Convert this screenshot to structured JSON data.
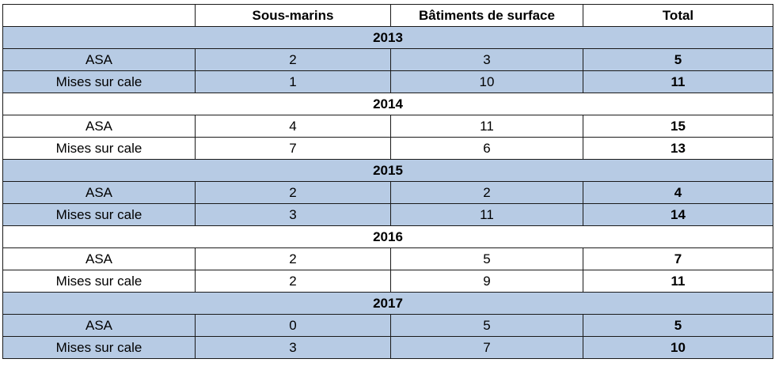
{
  "header": {
    "col0": "",
    "col1": "Sous-marins",
    "col2": "Bâtiments de surface",
    "col3": "Total"
  },
  "years": [
    {
      "year": "2013",
      "shaded": true,
      "rows": [
        {
          "label": "ASA",
          "submarines": "2",
          "surface": "3",
          "total": "5"
        },
        {
          "label": "Mises sur cale",
          "submarines": "1",
          "surface": "10",
          "total": "11"
        }
      ]
    },
    {
      "year": "2014",
      "shaded": false,
      "rows": [
        {
          "label": "ASA",
          "submarines": "4",
          "surface": "11",
          "total": "15"
        },
        {
          "label": "Mises sur cale",
          "submarines": "7",
          "surface": "6",
          "total": "13"
        }
      ]
    },
    {
      "year": "2015",
      "shaded": true,
      "rows": [
        {
          "label": "ASA",
          "submarines": "2",
          "surface": "2",
          "total": "4"
        },
        {
          "label": "Mises sur cale",
          "submarines": "3",
          "surface": "11",
          "total": "14"
        }
      ]
    },
    {
      "year": "2016",
      "shaded": false,
      "rows": [
        {
          "label": "ASA",
          "submarines": "2",
          "surface": "5",
          "total": "7"
        },
        {
          "label": "Mises sur cale",
          "submarines": "2",
          "surface": "9",
          "total": "11"
        }
      ]
    },
    {
      "year": "2017",
      "shaded": true,
      "rows": [
        {
          "label": "ASA",
          "submarines": "0",
          "surface": "5",
          "total": "5"
        },
        {
          "label": "Mises sur cale",
          "submarines": "3",
          "surface": "7",
          "total": "10"
        }
      ]
    }
  ],
  "colors": {
    "shade": "#b7cbe4",
    "border": "#1a1a1a"
  }
}
